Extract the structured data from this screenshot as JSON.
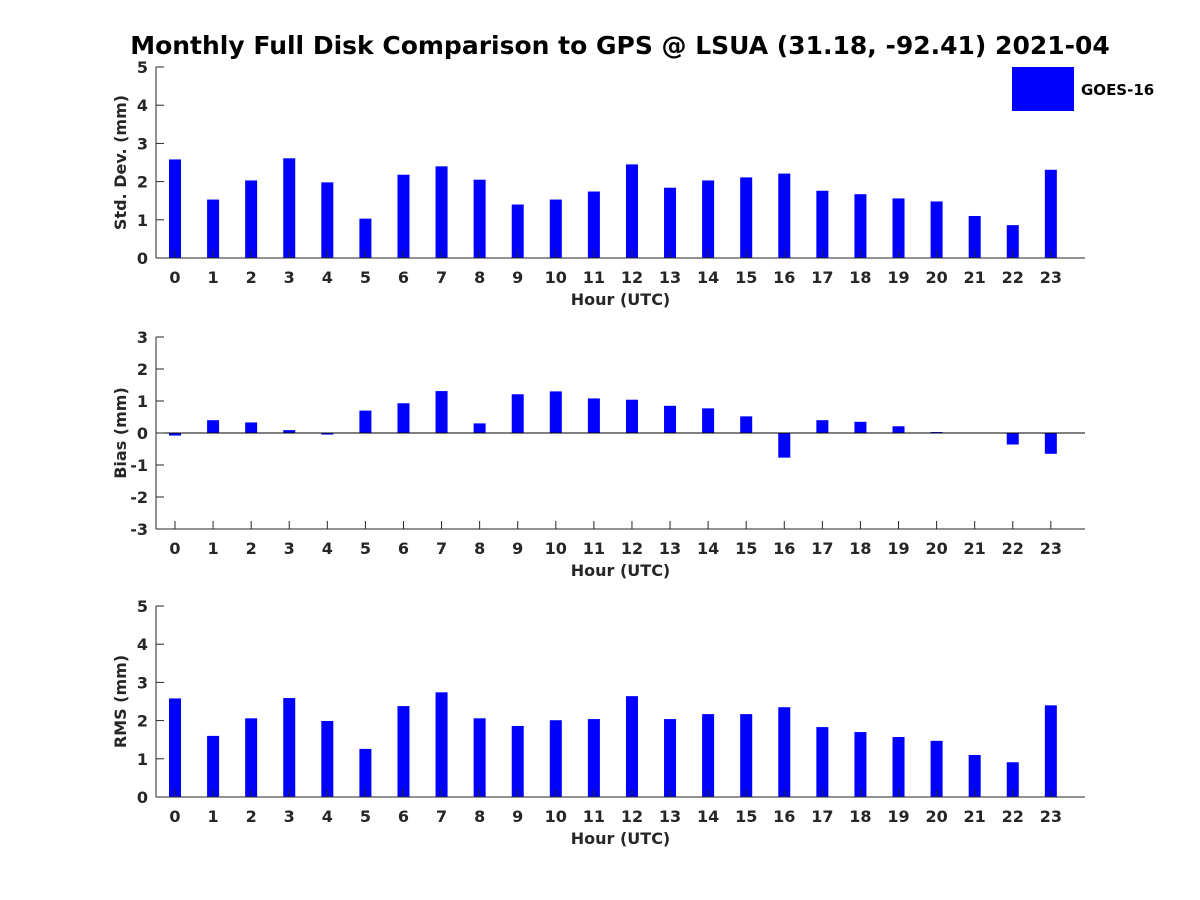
{
  "title": "Monthly Full Disk Comparison to GPS @ LSUA (31.18, -92.41) 2021-04",
  "legend": {
    "label": "GOES-16",
    "color": "#0000ff",
    "placement": "top-right"
  },
  "colors": {
    "bar": "#0000ff",
    "axis": "#262626",
    "background": "#ffffff"
  },
  "chart_data": [
    {
      "type": "bar",
      "categories": [
        "0",
        "1",
        "2",
        "3",
        "4",
        "5",
        "6",
        "7",
        "8",
        "9",
        "10",
        "11",
        "12",
        "13",
        "14",
        "15",
        "16",
        "17",
        "18",
        "19",
        "20",
        "21",
        "22",
        "23"
      ],
      "series": [
        {
          "name": "GOES-16",
          "values": [
            2.58,
            1.53,
            2.03,
            2.61,
            1.98,
            1.03,
            2.18,
            2.4,
            2.05,
            1.4,
            1.53,
            1.74,
            2.45,
            1.84,
            2.03,
            2.11,
            2.21,
            1.76,
            1.67,
            1.56,
            1.48,
            1.1,
            0.86,
            2.31
          ]
        }
      ],
      "xlabel": "Hour (UTC)",
      "ylabel": "Std. Dev. (mm)",
      "ylim": [
        0,
        5
      ],
      "yticks": [
        "0",
        "1",
        "2",
        "3",
        "4",
        "5"
      ],
      "grid": false
    },
    {
      "type": "bar",
      "categories": [
        "0",
        "1",
        "2",
        "3",
        "4",
        "5",
        "6",
        "7",
        "8",
        "9",
        "10",
        "11",
        "12",
        "13",
        "14",
        "15",
        "16",
        "17",
        "18",
        "19",
        "20",
        "21",
        "22",
        "23"
      ],
      "series": [
        {
          "name": "GOES-16",
          "values": [
            -0.08,
            0.4,
            0.33,
            0.09,
            -0.05,
            0.7,
            0.93,
            1.31,
            0.3,
            1.21,
            1.3,
            1.08,
            1.04,
            0.85,
            0.77,
            0.52,
            -0.77,
            0.4,
            0.35,
            0.21,
            0.03,
            0.0,
            -0.36,
            -0.65
          ]
        }
      ],
      "xlabel": "Hour (UTC)",
      "ylabel": "Bias (mm)",
      "ylim": [
        -3,
        3
      ],
      "yticks": [
        "-3",
        "-2",
        "-1",
        "0",
        "1",
        "2",
        "3"
      ],
      "grid": false
    },
    {
      "type": "bar",
      "categories": [
        "0",
        "1",
        "2",
        "3",
        "4",
        "5",
        "6",
        "7",
        "8",
        "9",
        "10",
        "11",
        "12",
        "13",
        "14",
        "15",
        "16",
        "17",
        "18",
        "19",
        "20",
        "21",
        "22",
        "23"
      ],
      "series": [
        {
          "name": "GOES-16",
          "values": [
            2.58,
            1.6,
            2.06,
            2.59,
            1.99,
            1.26,
            2.38,
            2.74,
            2.06,
            1.86,
            2.01,
            2.04,
            2.64,
            2.04,
            2.17,
            2.17,
            2.35,
            1.83,
            1.7,
            1.57,
            1.47,
            1.1,
            0.91,
            2.4
          ]
        }
      ],
      "xlabel": "Hour (UTC)",
      "ylabel": "RMS (mm)",
      "ylim": [
        0,
        5
      ],
      "yticks": [
        "0",
        "1",
        "2",
        "3",
        "4",
        "5"
      ],
      "grid": false
    }
  ]
}
